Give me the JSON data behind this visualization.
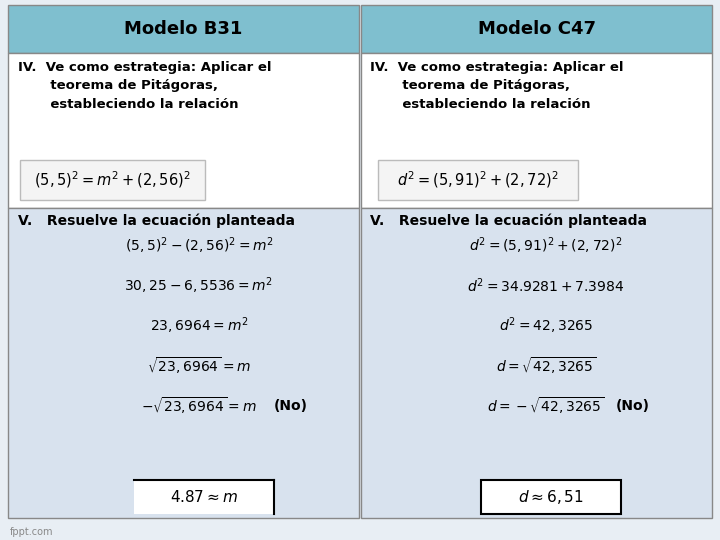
{
  "header_color": "#7FBFCF",
  "bg_color": "#E8EEF4",
  "row1_bg": "#FFFFFF",
  "row2_bg": "#D8E2EE",
  "border_color": "#888888",
  "col1_header": "Modelo B31",
  "col2_header": "Modelo C47",
  "section_iv_text_left": "IV.  Ve como estrategia: Aplicar el\n       teorema de Pitágoras,\n       estableciendo la relación",
  "section_iv_text_right": "IV.  Ve como estrategia: Aplicar el\n       teorema de Pitágoras,\n       estableciendo la relación",
  "section_v_left": "V.   Resuelve la ecuación planteada",
  "section_v_right": "V.   Resuelve la ecuación planteada",
  "figwidth": 7.2,
  "figheight": 5.4,
  "dpi": 100
}
